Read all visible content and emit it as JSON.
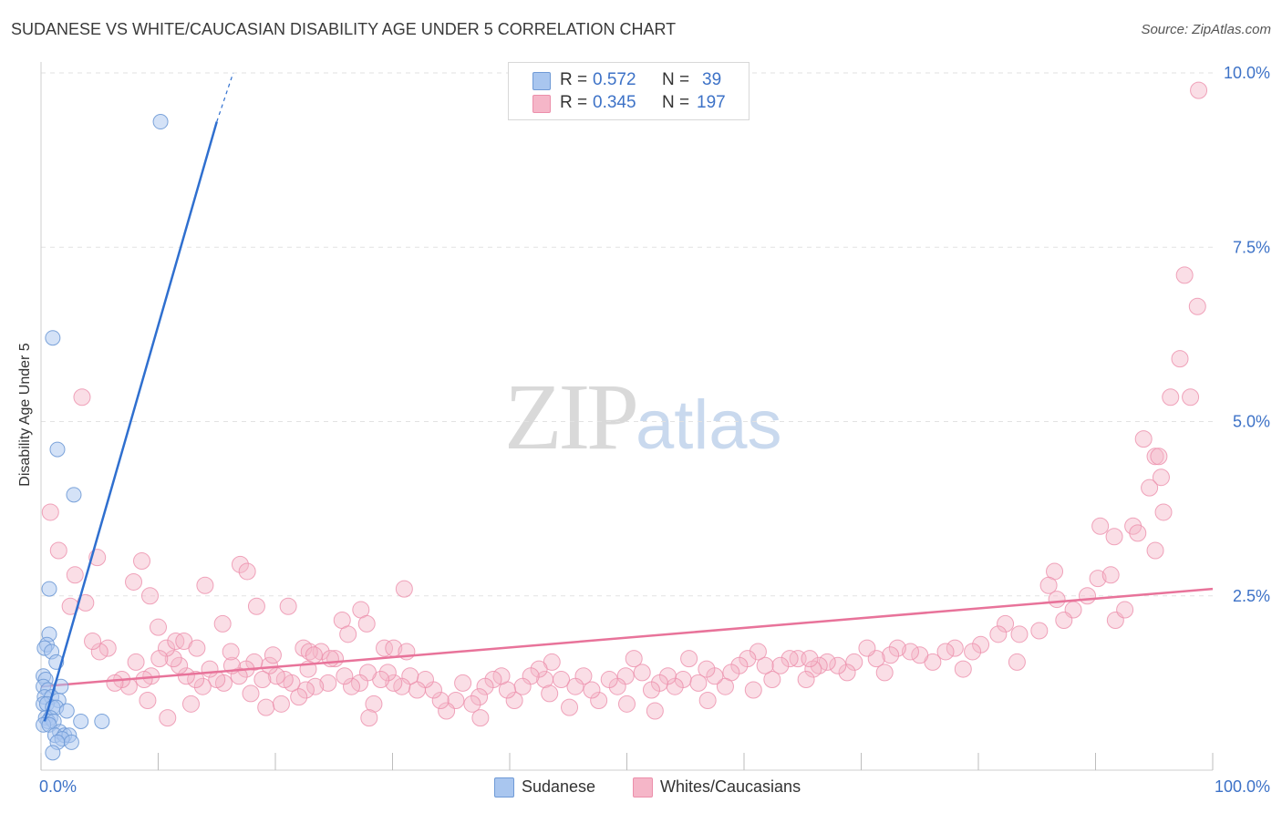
{
  "title": "SUDANESE VS WHITE/CAUCASIAN DISABILITY AGE UNDER 5 CORRELATION CHART",
  "source": "Source: ZipAtlas.com",
  "watermark": {
    "zip": "ZIP",
    "atlas": "atlas"
  },
  "colors": {
    "blue_fill": "#a9c6ef",
    "blue_stroke": "#6f9ad6",
    "blue_line": "#2f6fcf",
    "pink_fill": "#f5b6c8",
    "pink_stroke": "#ec8fab",
    "pink_line": "#e8739a",
    "axis_text": "#3d72c7",
    "grid": "#e2e2e2"
  },
  "legend": {
    "rows": [
      {
        "r_label": "R =",
        "r_value": "0.572",
        "n_label": "N =",
        "n_value": "39"
      },
      {
        "r_label": "R =",
        "r_value": "0.345",
        "n_label": "N =",
        "n_value": "197"
      }
    ]
  },
  "bottom_legend": {
    "series1": "Sudanese",
    "series2": "Whites/Caucasians"
  },
  "chart_data": {
    "type": "scatter",
    "ylabel": "Disability Age Under 5",
    "xlim": [
      0,
      100
    ],
    "ylim": [
      0,
      10
    ],
    "x_tick_labels": [
      "0.0%",
      "100.0%"
    ],
    "y_ticks": [
      2.5,
      5.0,
      7.5,
      10.0
    ],
    "y_tick_labels": [
      "2.5%",
      "5.0%",
      "7.5%",
      "10.0%"
    ],
    "grid": "horizontal dashed",
    "series": [
      {
        "name": "Sudanese",
        "trend": {
          "x": [
            0.3,
            15.0
          ],
          "y": [
            0.7,
            9.3
          ],
          "dashed_extension_to": [
            16.4,
            10.0
          ]
        },
        "points": [
          [
            10.2,
            9.3
          ],
          [
            1.0,
            6.2
          ],
          [
            1.4,
            4.6
          ],
          [
            2.8,
            3.95
          ],
          [
            0.7,
            2.6
          ],
          [
            0.7,
            1.95
          ],
          [
            0.5,
            1.8
          ],
          [
            0.3,
            1.75
          ],
          [
            0.9,
            1.7
          ],
          [
            1.3,
            1.55
          ],
          [
            0.2,
            1.35
          ],
          [
            0.4,
            1.3
          ],
          [
            0.2,
            1.2
          ],
          [
            1.7,
            1.2
          ],
          [
            0.6,
            1.15
          ],
          [
            0.3,
            1.05
          ],
          [
            0.9,
            1.05
          ],
          [
            1.5,
            1.0
          ],
          [
            0.2,
            0.95
          ],
          [
            0.5,
            0.95
          ],
          [
            1.0,
            0.9
          ],
          [
            1.3,
            0.9
          ],
          [
            2.2,
            0.85
          ],
          [
            0.4,
            0.75
          ],
          [
            0.8,
            0.75
          ],
          [
            0.6,
            0.7
          ],
          [
            1.1,
            0.7
          ],
          [
            0.2,
            0.65
          ],
          [
            0.7,
            0.65
          ],
          [
            3.4,
            0.7
          ],
          [
            5.2,
            0.7
          ],
          [
            1.6,
            0.55
          ],
          [
            1.2,
            0.5
          ],
          [
            2.0,
            0.5
          ],
          [
            2.4,
            0.5
          ],
          [
            1.8,
            0.45
          ],
          [
            1.4,
            0.4
          ],
          [
            2.6,
            0.4
          ],
          [
            1.0,
            0.25
          ]
        ]
      },
      {
        "name": "Whites/Caucasians",
        "trend": {
          "x": [
            0,
            100
          ],
          "y": [
            1.2,
            2.6
          ]
        },
        "points": [
          [
            98.8,
            9.75
          ],
          [
            97.6,
            7.1
          ],
          [
            98.7,
            6.65
          ],
          [
            97.2,
            5.9
          ],
          [
            96.4,
            5.35
          ],
          [
            98.1,
            5.35
          ],
          [
            94.1,
            4.75
          ],
          [
            95.6,
            4.2
          ],
          [
            95.1,
            4.5
          ],
          [
            95.4,
            4.5
          ],
          [
            94.6,
            4.05
          ],
          [
            95.8,
            3.7
          ],
          [
            90.4,
            3.5
          ],
          [
            91.6,
            3.35
          ],
          [
            93.2,
            3.5
          ],
          [
            95.1,
            3.15
          ],
          [
            93.6,
            3.4
          ],
          [
            86.5,
            2.85
          ],
          [
            89.3,
            2.5
          ],
          [
            90.2,
            2.75
          ],
          [
            91.3,
            2.8
          ],
          [
            91.7,
            2.15
          ],
          [
            92.5,
            2.3
          ],
          [
            88.1,
            2.3
          ],
          [
            86.0,
            2.65
          ],
          [
            86.7,
            2.45
          ],
          [
            87.3,
            2.15
          ],
          [
            85.2,
            2.0
          ],
          [
            83.5,
            1.95
          ],
          [
            82.3,
            2.1
          ],
          [
            81.7,
            1.95
          ],
          [
            80.2,
            1.8
          ],
          [
            79.5,
            1.7
          ],
          [
            78.0,
            1.75
          ],
          [
            77.2,
            1.7
          ],
          [
            76.1,
            1.55
          ],
          [
            75.0,
            1.65
          ],
          [
            74.2,
            1.7
          ],
          [
            73.1,
            1.75
          ],
          [
            72.5,
            1.65
          ],
          [
            71.3,
            1.6
          ],
          [
            70.5,
            1.75
          ],
          [
            69.4,
            1.55
          ],
          [
            68.8,
            1.4
          ],
          [
            68.0,
            1.5
          ],
          [
            67.1,
            1.55
          ],
          [
            66.4,
            1.5
          ],
          [
            65.9,
            1.45
          ],
          [
            65.3,
            1.3
          ],
          [
            64.6,
            1.6
          ],
          [
            63.9,
            1.6
          ],
          [
            63.1,
            1.5
          ],
          [
            62.4,
            1.3
          ],
          [
            61.8,
            1.5
          ],
          [
            61.2,
            1.7
          ],
          [
            60.3,
            1.6
          ],
          [
            59.6,
            1.5
          ],
          [
            58.9,
            1.4
          ],
          [
            58.4,
            1.2
          ],
          [
            57.5,
            1.35
          ],
          [
            56.8,
            1.45
          ],
          [
            56.1,
            1.25
          ],
          [
            55.3,
            1.6
          ],
          [
            54.8,
            1.3
          ],
          [
            54.1,
            1.2
          ],
          [
            53.5,
            1.35
          ],
          [
            52.8,
            1.25
          ],
          [
            52.1,
            1.15
          ],
          [
            51.3,
            1.4
          ],
          [
            50.6,
            1.6
          ],
          [
            49.9,
            1.35
          ],
          [
            49.2,
            1.2
          ],
          [
            48.5,
            1.3
          ],
          [
            47.6,
            1.0
          ],
          [
            47.0,
            1.15
          ],
          [
            46.3,
            1.35
          ],
          [
            45.6,
            1.2
          ],
          [
            45.1,
            0.9
          ],
          [
            44.4,
            1.3
          ],
          [
            43.6,
            1.55
          ],
          [
            43.0,
            1.3
          ],
          [
            42.5,
            1.45
          ],
          [
            41.8,
            1.35
          ],
          [
            41.1,
            1.2
          ],
          [
            40.4,
            1.0
          ],
          [
            39.8,
            1.15
          ],
          [
            39.3,
            1.35
          ],
          [
            38.6,
            1.3
          ],
          [
            37.9,
            1.2
          ],
          [
            37.4,
            1.05
          ],
          [
            36.8,
            0.95
          ],
          [
            36.0,
            1.25
          ],
          [
            35.4,
            1.0
          ],
          [
            34.6,
            0.85
          ],
          [
            34.1,
            1.0
          ],
          [
            33.5,
            1.15
          ],
          [
            32.8,
            1.3
          ],
          [
            32.1,
            1.15
          ],
          [
            31.5,
            1.35
          ],
          [
            30.8,
            1.2
          ],
          [
            30.1,
            1.25
          ],
          [
            29.6,
            1.4
          ],
          [
            29.0,
            1.3
          ],
          [
            28.4,
            0.95
          ],
          [
            27.9,
            1.4
          ],
          [
            27.2,
            1.25
          ],
          [
            26.5,
            1.2
          ],
          [
            25.9,
            1.35
          ],
          [
            25.1,
            1.6
          ],
          [
            24.5,
            1.25
          ],
          [
            23.9,
            1.7
          ],
          [
            23.4,
            1.2
          ],
          [
            22.6,
            1.15
          ],
          [
            22.0,
            1.05
          ],
          [
            21.4,
            1.25
          ],
          [
            20.8,
            1.3
          ],
          [
            20.1,
            1.35
          ],
          [
            19.5,
            1.5
          ],
          [
            18.9,
            1.3
          ],
          [
            18.2,
            1.55
          ],
          [
            17.5,
            1.45
          ],
          [
            16.9,
            1.35
          ],
          [
            16.3,
            1.5
          ],
          [
            15.6,
            1.25
          ],
          [
            15.0,
            1.3
          ],
          [
            14.4,
            1.45
          ],
          [
            13.8,
            1.2
          ],
          [
            13.2,
            1.3
          ],
          [
            12.4,
            1.35
          ],
          [
            11.8,
            1.5
          ],
          [
            11.3,
            1.6
          ],
          [
            10.7,
            1.75
          ],
          [
            10.1,
            1.6
          ],
          [
            9.4,
            1.35
          ],
          [
            8.8,
            1.3
          ],
          [
            8.1,
            1.55
          ],
          [
            7.5,
            1.2
          ],
          [
            6.9,
            1.3
          ],
          [
            6.3,
            1.25
          ],
          [
            5.7,
            1.75
          ],
          [
            5.0,
            1.7
          ],
          [
            4.4,
            1.85
          ],
          [
            3.8,
            2.4
          ],
          [
            2.9,
            2.8
          ],
          [
            2.5,
            2.35
          ],
          [
            1.5,
            3.15
          ],
          [
            0.8,
            3.7
          ],
          [
            3.5,
            5.35
          ],
          [
            4.8,
            3.05
          ],
          [
            7.9,
            2.7
          ],
          [
            8.6,
            3.0
          ],
          [
            9.3,
            2.5
          ],
          [
            10.0,
            2.05
          ],
          [
            11.5,
            1.85
          ],
          [
            12.2,
            1.85
          ],
          [
            13.3,
            1.75
          ],
          [
            14.0,
            2.65
          ],
          [
            15.5,
            2.1
          ],
          [
            16.2,
            1.7
          ],
          [
            17.0,
            2.95
          ],
          [
            17.6,
            2.85
          ],
          [
            18.4,
            2.35
          ],
          [
            19.8,
            1.65
          ],
          [
            21.1,
            2.35
          ],
          [
            22.4,
            1.75
          ],
          [
            22.9,
            1.7
          ],
          [
            23.3,
            1.65
          ],
          [
            24.7,
            1.6
          ],
          [
            25.7,
            2.15
          ],
          [
            26.2,
            1.95
          ],
          [
            27.3,
            2.3
          ],
          [
            27.8,
            2.1
          ],
          [
            29.3,
            1.75
          ],
          [
            30.1,
            1.75
          ],
          [
            31.0,
            2.6
          ],
          [
            31.2,
            1.7
          ],
          [
            9.1,
            1.0
          ],
          [
            10.8,
            0.75
          ],
          [
            12.8,
            0.95
          ],
          [
            17.9,
            1.1
          ],
          [
            19.2,
            0.9
          ],
          [
            20.5,
            0.95
          ],
          [
            22.8,
            1.45
          ],
          [
            28.0,
            0.75
          ],
          [
            37.5,
            0.75
          ],
          [
            43.4,
            1.1
          ],
          [
            50.0,
            0.95
          ],
          [
            52.4,
            0.85
          ],
          [
            56.9,
            1.0
          ],
          [
            60.8,
            1.15
          ],
          [
            65.6,
            1.6
          ],
          [
            72.0,
            1.4
          ],
          [
            78.7,
            1.45
          ],
          [
            83.3,
            1.55
          ]
        ]
      }
    ]
  }
}
